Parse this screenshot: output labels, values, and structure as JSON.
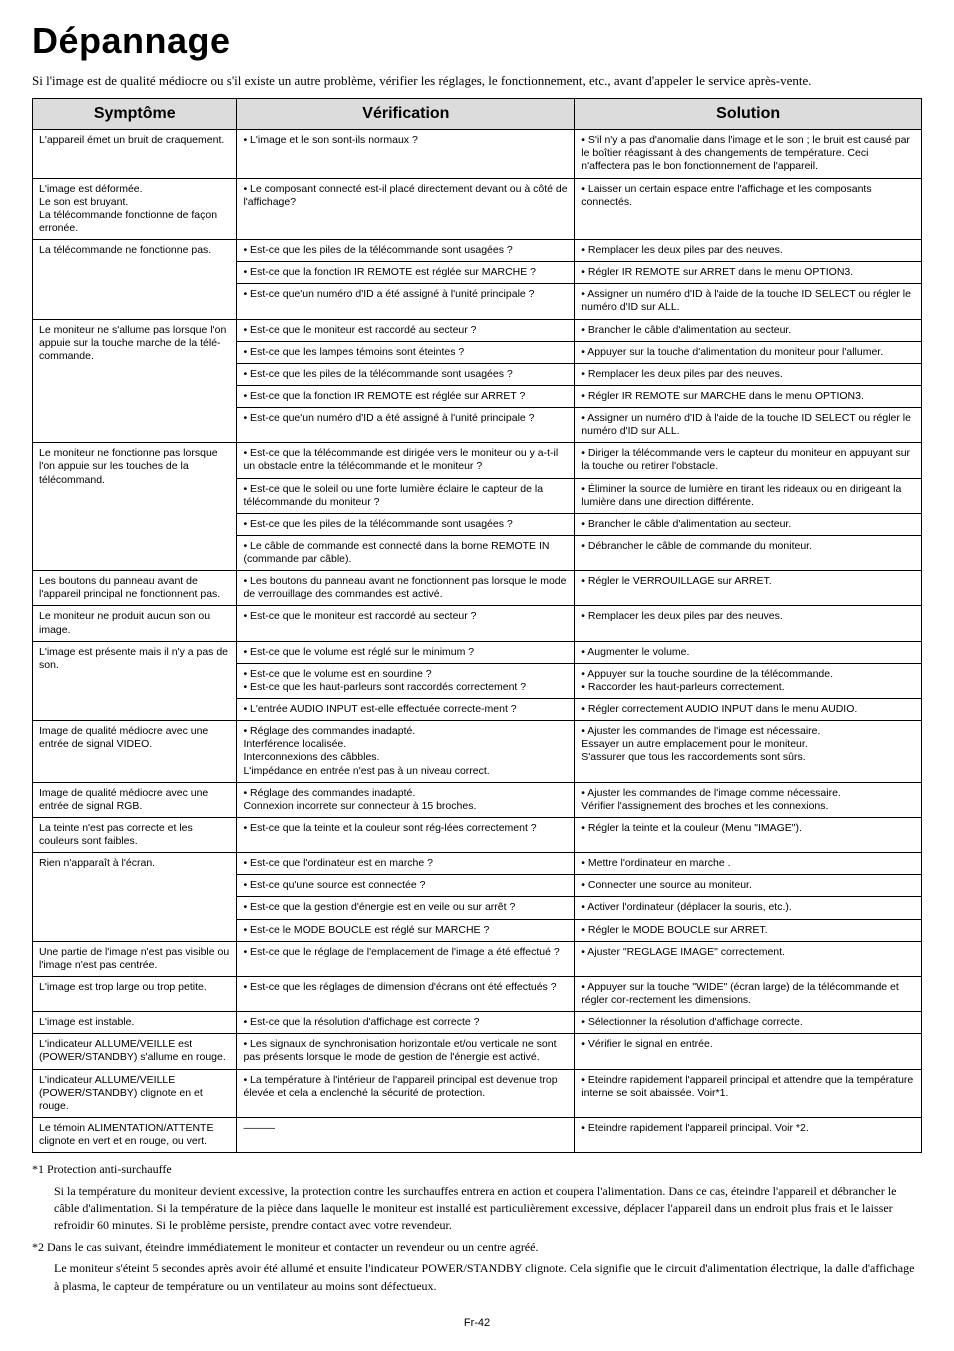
{
  "title": "Dépannage",
  "intro": "Si l'image est de qualité médiocre ou s'il existe un autre problème, vérifier les réglages, le fonctionnement, etc., avant d'appeler le service après-vente.",
  "columns": [
    "Symptôme",
    "Vérification",
    "Solution"
  ],
  "rows": [
    {
      "symptom": "L'appareil émet un bruit de craquement.",
      "checks": [
        {
          "v": "• L'image et le son sont-ils normaux ?",
          "s": "• S'il n'y a pas d'anomalie dans l'image et le son ; le bruit est causé par le boîtier réagissant à des changements de température. Ceci n'affectera pas le bon fonctionnement de l'appareil."
        }
      ]
    },
    {
      "symptom": "L'image est déformée.\nLe son est bruyant.\nLa télécommande fonctionne de façon erronée.",
      "checks": [
        {
          "v": "• Le composant connecté est-il placé directement devant ou à côté de l'affichage?",
          "s": "• Laisser un certain espace entre l'affichage et les composants connectés."
        }
      ]
    },
    {
      "symptom": "La télécommande ne fonctionne pas.",
      "checks": [
        {
          "v": "• Est-ce que les piles de la télécommande sont usagées ?",
          "s": "• Remplacer les deux piles par des neuves."
        },
        {
          "v": "• Est-ce que la fonction IR REMOTE est réglée sur MARCHE ?",
          "s": "• Régler IR REMOTE sur ARRET dans le menu OPTION3."
        },
        {
          "v": "• Est-ce que'un numéro d'ID a été assigné à l'unité principale ?",
          "s": "• Assigner un numéro d'ID à l'aide de la touche ID SELECT ou régler le numéro d'ID sur ALL."
        }
      ]
    },
    {
      "symptom": "Le moniteur ne s'allume pas lorsque l'on appuie sur la touche marche de la télé-commande.",
      "checks": [
        {
          "v": "• Est-ce que le moniteur est raccordé au secteur ?",
          "s": "• Brancher le câble d'alimentation au secteur."
        },
        {
          "v": "• Est-ce que les lampes témoins sont éteintes ?",
          "s": "• Appuyer sur la touche d'alimentation du moniteur pour l'allumer."
        },
        {
          "v": "• Est-ce que les piles de la télécommande sont usagées ?",
          "s": "• Remplacer les deux piles par des neuves."
        },
        {
          "v": "• Est-ce que la fonction IR REMOTE est réglée sur ARRET ?",
          "s": "• Régler IR REMOTE sur MARCHE dans le menu OPTION3."
        },
        {
          "v": "• Est-ce que'un numéro d'ID a été assigné à l'unité principale ?",
          "s": "• Assigner un numéro d'ID à l'aide de la touche ID SELECT ou régler le numéro d'ID sur ALL."
        }
      ]
    },
    {
      "symptom": "Le moniteur ne fonctionne pas lorsque l'on appuie sur les touches de la télécommand.",
      "checks": [
        {
          "v": "• Est-ce que la télécommande est dirigée vers le moniteur ou y a-t-il un obstacle entre la télécommande et le moniteur ?",
          "s": "• Diriger la télécommande vers le capteur du moniteur en appuyant sur la touche ou retirer l'obstacle."
        },
        {
          "v": "• Est-ce que le soleil ou une forte lumière éclaire le capteur de la télécommande du moniteur ?",
          "s": "• Éliminer la source de lumière en tirant les rideaux ou en dirigeant la lumière dans une direction différente."
        },
        {
          "v": "• Est-ce que les piles de la télécommande sont usagées ?",
          "s": "• Brancher le câble d'alimentation au secteur."
        },
        {
          "v": "• Le câble de commande est connecté dans la borne REMOTE IN (commande par câble).",
          "s": "• Débrancher le câble de commande du moniteur."
        }
      ]
    },
    {
      "symptom": "Les boutons du panneau avant de l'appareil principal ne fonctionnent pas.",
      "checks": [
        {
          "v": "• Les boutons du panneau avant ne fonctionnent pas lorsque le mode de verrouillage des commandes est activé.",
          "s": "• Régler le VERROUILLAGE sur ARRET."
        }
      ]
    },
    {
      "symptom": "Le moniteur ne produit aucun son ou image.",
      "checks": [
        {
          "v": "• Est-ce que le moniteur est raccordé au secteur ?",
          "s": "• Remplacer les deux piles par des neuves."
        }
      ]
    },
    {
      "symptom": "L'image est présente mais il n'y a pas de son.",
      "checks": [
        {
          "v": "• Est-ce que le volume est réglé sur le minimum ?",
          "s": "• Augmenter le volume."
        },
        {
          "v": "• Est-ce que le volume est en sourdine ?\n• Est-ce que les haut-parleurs sont raccordés correctement ?",
          "s": "• Appuyer sur la touche sourdine de la télécommande.\n• Raccorder les haut-parleurs correctement."
        },
        {
          "v": "• L'entrée AUDIO INPUT est-elle effectuée correcte-ment ?",
          "s": "• Régler correctement AUDIO INPUT dans le menu AUDIO."
        }
      ]
    },
    {
      "symptom": "Image de qualité médiocre avec une entrée de signal VIDEO.",
      "checks": [
        {
          "v": "• Réglage des commandes inadapté.\nInterférence localisée.\nInterconnexions des câbbles.\nL'impédance en entrée n'est pas à un niveau correct.",
          "s": "• Ajuster les commandes de l'image est nécessaire.\nEssayer un autre emplacement pour le moniteur.\nS'assurer que tous les raccordements sont sûrs."
        }
      ]
    },
    {
      "symptom": "Image de qualité médiocre avec une entrée de signal RGB.",
      "checks": [
        {
          "v": "• Réglage des commandes inadapté.\nConnexion incorrete sur connecteur à 15 broches.",
          "s": "• Ajuster les commandes de l'image comme nécessaire.\nVérifier l'assignement des broches et les connexions."
        }
      ]
    },
    {
      "symptom": "La teinte n'est pas correcte et les couleurs sont faibles.",
      "checks": [
        {
          "v": "• Est-ce que la teinte et la couleur sont rég-lées correctement ?",
          "s": "• Régler la teinte et la couleur (Menu \"IMAGE\")."
        }
      ]
    },
    {
      "symptom": "Rien n'apparaît à l'écran.",
      "checks": [
        {
          "v": "• Est-ce que l'ordinateur est en marche ?",
          "s": "• Mettre l'ordinateur en marche ."
        },
        {
          "v": "• Est-ce qu'une source est connectée ?",
          "s": "• Connecter une source au moniteur."
        },
        {
          "v": "• Est-ce que la gestion d'énergie est en veile ou sur arrêt ?",
          "s": "• Activer l'ordinateur (déplacer la souris, etc.)."
        },
        {
          "v": "• Est-ce  le MODE BOUCLE est réglé sur MARCHE ?",
          "s": "• Régler le MODE BOUCLE sur ARRET."
        }
      ]
    },
    {
      "symptom": "Une partie de l'image n'est pas visible ou l'image n'est pas centrée.",
      "checks": [
        {
          "v": "• Est-ce que le réglage de l'emplacement de l'image a été effectué ?",
          "s": "• Ajuster \"REGLAGE IMAGE\" correctement."
        }
      ]
    },
    {
      "symptom": "L'image est trop large ou trop petite.",
      "checks": [
        {
          "v": "• Est-ce que les réglages de dimension d'écrans ont été effectués ?",
          "s": "• Appuyer sur la touche \"WIDE\" (écran large) de la télécommande et régler cor-rectement les dimensions."
        }
      ]
    },
    {
      "symptom": "L'image est instable.",
      "checks": [
        {
          "v": "• Est-ce que la résolution d'affichage est correcte ?",
          "s": "• Sélectionner la résolution d'affichage correcte."
        }
      ]
    },
    {
      "symptom": "L'indicateur ALLUME/VEILLE est (POWER/STANDBY) s'allume en rouge.",
      "checks": [
        {
          "v": "• Les signaux de synchronisation horizontale et/ou verticale ne sont pas présents lorsque le mode de gestion de l'énergie est activé.",
          "s": "• Vérifier le signal en entrée."
        }
      ]
    },
    {
      "symptom": "L'indicateur ALLUME/VEILLE (POWER/STANDBY) clignote en et rouge.",
      "checks": [
        {
          "v": "• La température à l'intérieur de l'appareil principal est devenue trop élevée et cela a enclenché la sécurité de protection.",
          "s": "• Eteindre rapidement l'appareil principal et attendre que la température interne se soit abaissée. Voir*1."
        }
      ]
    },
    {
      "symptom": "Le témoin ALIMENTATION/ATTENTE clignote en vert et en rouge, ou vert.",
      "checks": [
        {
          "v": "———",
          "s": "• Eteindre rapidement l'appareil principal. Voir *2."
        }
      ]
    }
  ],
  "footnotes": {
    "l1": "*1 Protection anti-surchauffe",
    "l2": "Si la température du moniteur devient excessive, la protection contre les surchauffes entrera en action et coupera l'alimentation. Dans ce cas, éteindre l'appareil et débrancher le câble d'alimentation. Si la température de la pièce dans laquelle le moniteur est installé est particulièrement excessive, déplacer l'appareil dans un endroit plus frais et le laisser refroidir 60 minutes. Si le problème persiste, prendre contact avec votre revendeur.",
    "l3": "*2 Dans le cas suivant, éteindre immédiatement le moniteur et contacter un revendeur ou un centre agréé.",
    "l4": "Le moniteur s'éteint 5 secondes après avoir été allumé et ensuite l'indicateur POWER/STANDBY clignote. Cela signifie que le circuit d'alimentation électrique, la dalle d'affichage à plasma, le capteur de température ou un ventilateur au moins sont défectueux."
  },
  "pagenum": "Fr-42"
}
